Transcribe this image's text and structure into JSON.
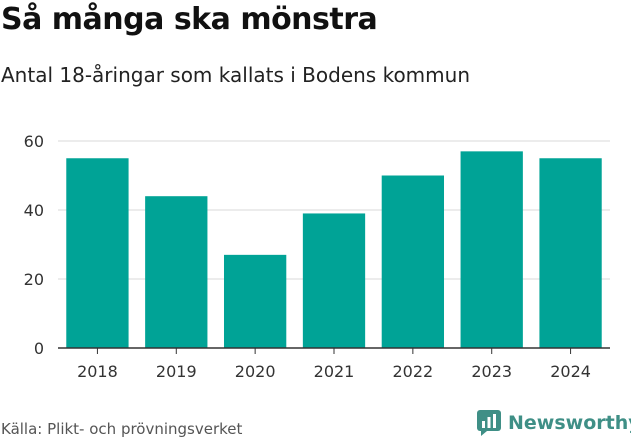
{
  "header": {
    "title": "Så många ska mönstra",
    "subtitle": "Antal 18-åringar som kallats i Bodens kommun"
  },
  "footer": {
    "source": "Källa: Plikt- och prövningsverket",
    "brand": "Newsworthy",
    "brand_icon": "newsworthy-logo-icon"
  },
  "colors": {
    "bar": "#00a396",
    "grid": "#d9d9d9",
    "axis": "#333333",
    "brand": "#3f8f86"
  },
  "chart_data": {
    "type": "bar",
    "title": "Så många ska mönstra",
    "subtitle": "Antal 18-åringar som kallats i Bodens kommun",
    "categories": [
      "2018",
      "2019",
      "2020",
      "2021",
      "2022",
      "2023",
      "2024"
    ],
    "values": [
      55,
      44,
      27,
      39,
      50,
      57,
      55
    ],
    "ylim": [
      0,
      60
    ],
    "yticks": [
      0,
      20,
      40,
      60
    ],
    "xlabel": "",
    "ylabel": "",
    "grid": true
  }
}
